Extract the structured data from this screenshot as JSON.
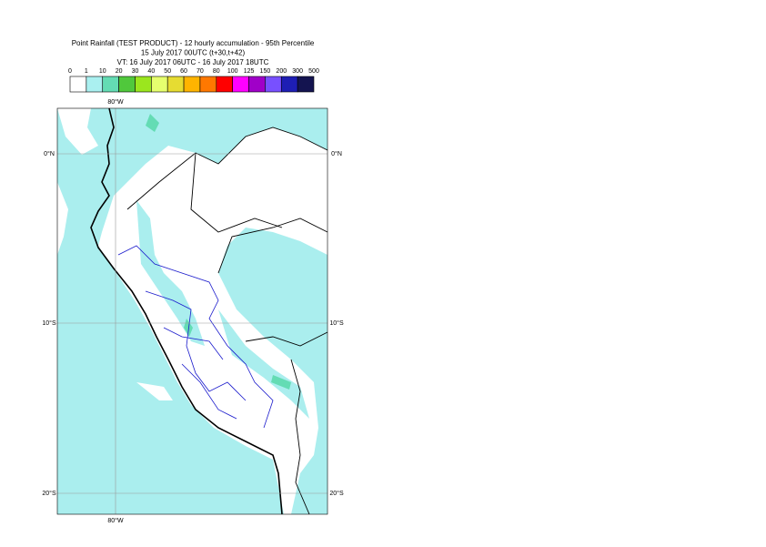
{
  "header": {
    "title": [
      "Point Rainfall (TEST PRODUCT) - 12 hourly accumulation - 95th Percentile",
      "15 July 2017 00UTC (t+30,t+42)",
      "VT: 16 July 2017 06UTC - 16 July 2017 18UTC"
    ]
  },
  "legend": {
    "labels": [
      "0",
      "1",
      "10",
      "20",
      "30",
      "40",
      "50",
      "60",
      "70",
      "80",
      "100",
      "125",
      "150",
      "200",
      "300",
      "500"
    ],
    "colors": [
      "#ffffff",
      "#aaf0f0",
      "#64dcb4",
      "#50c83c",
      "#9be61e",
      "#e6ff6e",
      "#e6dc32",
      "#ffb400",
      "#ff7800",
      "#ff0000",
      "#ff00ff",
      "#a000c8",
      "#7850ff",
      "#1e1eb4",
      "#141450"
    ]
  },
  "map": {
    "lon_labels": [
      "80°W"
    ],
    "lat_labels": [
      "0°N",
      "10°S",
      "20°S"
    ]
  }
}
